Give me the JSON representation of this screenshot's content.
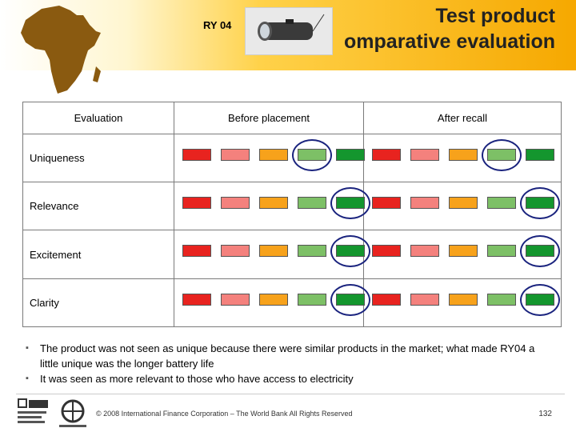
{
  "header": {
    "code": "RY 04",
    "title_line1": "Test product",
    "title_line2": "omparative evaluation"
  },
  "table": {
    "columns": [
      "Evaluation",
      "Before placement",
      "After recall"
    ],
    "scale_colors": [
      "#e8231f",
      "#f4817d",
      "#f7a21b",
      "#7dc066",
      "#14962e"
    ],
    "rows": [
      {
        "label": "Uniqueness",
        "before_circled": 3,
        "after_circled": 3
      },
      {
        "label": "Relevance",
        "before_circled": 4,
        "after_circled": 4
      },
      {
        "label": "Excitement",
        "before_circled": 4,
        "after_circled": 4
      },
      {
        "label": "Clarity",
        "before_circled": 4,
        "after_circled": 4
      }
    ]
  },
  "bullets": [
    "The product was not seen as unique because there were similar products in the market; what made RY04 a little unique was the longer battery life",
    "It was seen as more relevant to those who have access to electricity"
  ],
  "footer": {
    "copyright": "© 2008 International Finance Corporation – The World Bank All Rights Reserved",
    "page": "132"
  },
  "icons": {
    "map": "africa-map-icon",
    "product": "flashlight-photo",
    "logo1": "ifc-logo",
    "logo2": "world-bank-logo"
  }
}
